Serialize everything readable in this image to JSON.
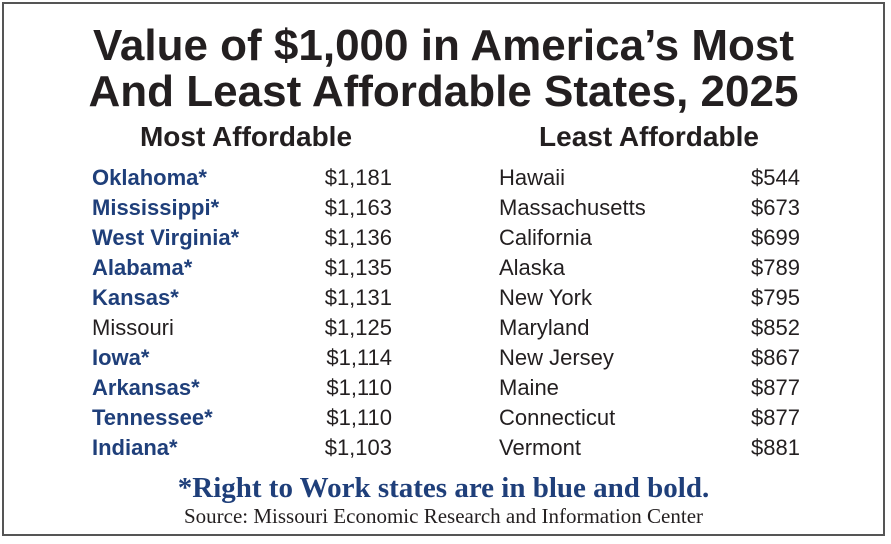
{
  "title": [
    "Value of $1,000 in America’s Most",
    "And Least Affordable States, 2025"
  ],
  "tables": [
    {
      "heading": "Most Affordable",
      "rows": [
        {
          "state": "Oklahoma*",
          "value": "$1,181",
          "right_to_work": true
        },
        {
          "state": "Mississippi*",
          "value": "$1,163",
          "right_to_work": true
        },
        {
          "state": "West Virginia*",
          "value": "$1,136",
          "right_to_work": true
        },
        {
          "state": "Alabama*",
          "value": "$1,135",
          "right_to_work": true
        },
        {
          "state": "Kansas*",
          "value": "$1,131",
          "right_to_work": true
        },
        {
          "state": "Missouri",
          "value": "$1,125",
          "right_to_work": false
        },
        {
          "state": "Iowa*",
          "value": "$1,114",
          "right_to_work": true
        },
        {
          "state": "Arkansas*",
          "value": "$1,110",
          "right_to_work": true
        },
        {
          "state": "Tennessee*",
          "value": "$1,110",
          "right_to_work": true
        },
        {
          "state": "Indiana*",
          "value": "$1,103",
          "right_to_work": true
        }
      ]
    },
    {
      "heading": "Least Affordable",
      "rows": [
        {
          "state": "Hawaii",
          "value": "$544",
          "right_to_work": false
        },
        {
          "state": "Massachusetts",
          "value": "$673",
          "right_to_work": false
        },
        {
          "state": "California",
          "value": "$699",
          "right_to_work": false
        },
        {
          "state": "Alaska",
          "value": "$789",
          "right_to_work": false
        },
        {
          "state": "New York",
          "value": "$795",
          "right_to_work": false
        },
        {
          "state": "Maryland",
          "value": "$852",
          "right_to_work": false
        },
        {
          "state": "New Jersey",
          "value": "$867",
          "right_to_work": false
        },
        {
          "state": "Maine",
          "value": "$877",
          "right_to_work": false
        },
        {
          "state": "Connecticut",
          "value": "$877",
          "right_to_work": false
        },
        {
          "state": "Vermont",
          "value": "$881",
          "right_to_work": false
        }
      ]
    }
  ],
  "footnote": "*Right to Work states are in blue and bold.",
  "source": "Source: Missouri Economic Research and Information Center"
}
